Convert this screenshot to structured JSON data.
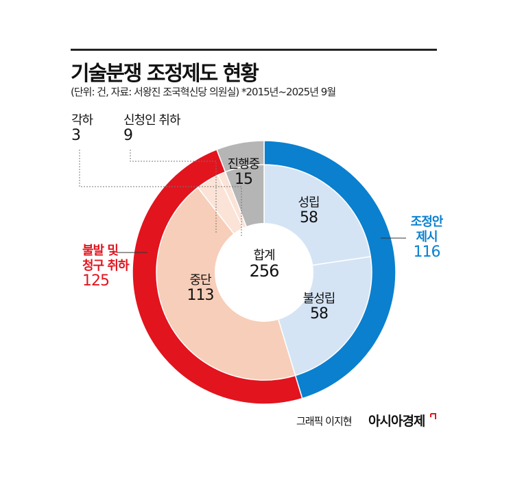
{
  "title": "기술분쟁 조정제도 현황",
  "subtitle": "(단위: 건, 자료: 서왕진 조국혁신당 의원실)  *2015년~2025년 9월",
  "credit": "그래픽 이지현",
  "brand": "아시아경제",
  "colors": {
    "blue": "#0a80cf",
    "red": "#e2141e",
    "gray": "#b5b5b5",
    "lightblue": "#d5e4f4",
    "peach": "#f7ceb9",
    "lightpeach": "#fbe3d7"
  },
  "chart_data": {
    "type": "pie",
    "title": "기술분쟁 조정제도 현황",
    "total_label": "합계",
    "total": 256,
    "outer": [
      {
        "name": "조정안 제시",
        "value": 116,
        "color": "#0a80cf"
      },
      {
        "name": "불발 및 청구 취하",
        "value": 125,
        "color": "#e2141e"
      },
      {
        "name": "진행중",
        "value": 15,
        "color": "#b5b5b5"
      }
    ],
    "inner": [
      {
        "name": "성립",
        "value": 58,
        "color": "#d5e4f4"
      },
      {
        "name": "불성립",
        "value": 58,
        "color": "#d5e4f4"
      },
      {
        "name": "중단",
        "value": 113,
        "color": "#f7ceb9"
      },
      {
        "name": "신청인 취하",
        "value": 9,
        "color": "#fbe3d7"
      },
      {
        "name": "각하",
        "value": 3,
        "color": "#fbe3d7"
      },
      {
        "name": "진행중",
        "value": 15,
        "color": "#b5b5b5"
      }
    ],
    "labels": {
      "outer_blue_1": "조정안",
      "outer_blue_2": "제시",
      "outer_red_1": "불발 및",
      "outer_red_2": "청구 취하"
    }
  }
}
